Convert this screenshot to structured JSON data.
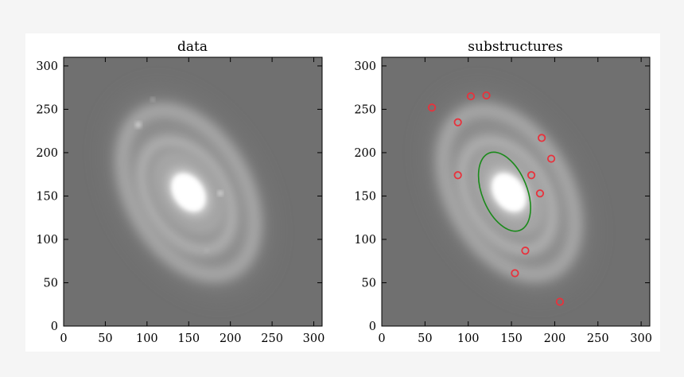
{
  "chart_data": [
    {
      "type": "scatter",
      "title": "data",
      "xlabel": "",
      "ylabel": "",
      "xlim": [
        0,
        310
      ],
      "ylim": [
        0,
        310
      ],
      "x_ticks": [
        "0",
        "50",
        "100",
        "150",
        "200",
        "250",
        "300"
      ],
      "y_ticks": [
        "0",
        "50",
        "100",
        "150",
        "200",
        "250",
        "300"
      ],
      "image": "grayscale spiral galaxy",
      "grid": false
    },
    {
      "type": "scatter",
      "title": "substructures",
      "xlabel": "",
      "ylabel": "",
      "xlim": [
        0,
        310
      ],
      "ylim": [
        0,
        310
      ],
      "x_ticks": [
        "0",
        "50",
        "100",
        "150",
        "200",
        "250",
        "300"
      ],
      "y_ticks": [
        "0",
        "50",
        "100",
        "150",
        "200",
        "250",
        "300"
      ],
      "image": "grayscale spiral galaxy",
      "grid": false,
      "series": [
        {
          "marker": "red-circle",
          "color": "#e8323c",
          "points": [
            {
              "x": 58,
              "y": 252
            },
            {
              "x": 103,
              "y": 265
            },
            {
              "x": 121,
              "y": 266
            },
            {
              "x": 88,
              "y": 235
            },
            {
              "x": 185,
              "y": 217
            },
            {
              "x": 196,
              "y": 193
            },
            {
              "x": 88,
              "y": 174
            },
            {
              "x": 173,
              "y": 174
            },
            {
              "x": 183,
              "y": 153
            },
            {
              "x": 166,
              "y": 87
            },
            {
              "x": 154,
              "y": 61
            },
            {
              "x": 206,
              "y": 28
            }
          ]
        }
      ],
      "ellipse": {
        "cx": 142,
        "cy": 155,
        "rx": 26,
        "ry": 48,
        "angle_deg": -22,
        "color": "#1a8a1a"
      }
    }
  ]
}
